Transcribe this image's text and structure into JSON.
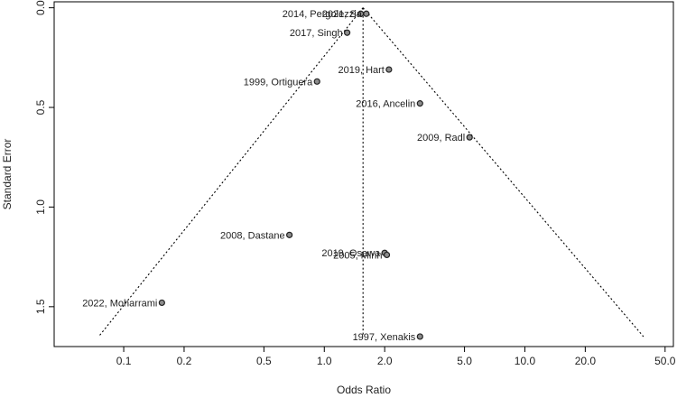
{
  "chart_data": {
    "type": "scatter",
    "subtype": "funnel",
    "xlabel": "Odds Ratio",
    "ylabel": "Standard Error",
    "x_scale": "log",
    "y_reversed": true,
    "xlim": [
      0.045,
      55
    ],
    "ylim": [
      1.7,
      -0.03
    ],
    "xticks": [
      0.1,
      0.2,
      0.5,
      1.0,
      2.0,
      5.0,
      10.0,
      20.0,
      50.0
    ],
    "xtick_labels": [
      "0.1",
      "0.2",
      "0.5",
      "1.0",
      "2.0",
      "5.0",
      "10.0",
      "20.0",
      "50.0"
    ],
    "yticks": [
      0.0,
      0.5,
      1.0,
      1.5
    ],
    "ytick_labels": [
      "0.0",
      "0.5",
      "1.0",
      "1.5"
    ],
    "pooled_estimate": 1.56,
    "funnel_base_se": 1.65,
    "funnel_base_x": [
      0.075,
      39
    ],
    "grid": false,
    "points": [
      {
        "label": "2014, Pergolezzi",
        "or": 1.52,
        "se": 0.03,
        "label_side": "left"
      },
      {
        "label": "2021, Sa",
        "or": 1.62,
        "se": 0.03,
        "label_side": "left"
      },
      {
        "label": "2017, Singh",
        "or": 1.3,
        "se": 0.125,
        "label_side": "left"
      },
      {
        "label": "2019, Hart",
        "or": 2.1,
        "se": 0.31,
        "label_side": "left"
      },
      {
        "label": "1999, Ortiguera",
        "or": 0.92,
        "se": 0.37,
        "label_side": "left"
      },
      {
        "label": "2016, Ancelin",
        "or": 3.0,
        "se": 0.48,
        "label_side": "left"
      },
      {
        "label": "2009, Radl",
        "or": 5.3,
        "se": 0.65,
        "label_side": "left"
      },
      {
        "label": "2008, Dastane",
        "or": 0.67,
        "se": 1.14,
        "label_side": "left"
      },
      {
        "label": "2019, Osawa",
        "or": 2.0,
        "se": 1.23,
        "label_side": "left"
      },
      {
        "label": "2005, Minh",
        "or": 2.05,
        "se": 1.24,
        "label_side": "left"
      },
      {
        "label": "2022, Moharrami",
        "or": 0.155,
        "se": 1.48,
        "label_side": "left"
      },
      {
        "label": "1997, Xenakis",
        "or": 3.0,
        "se": 1.65,
        "label_side": "left"
      }
    ]
  }
}
